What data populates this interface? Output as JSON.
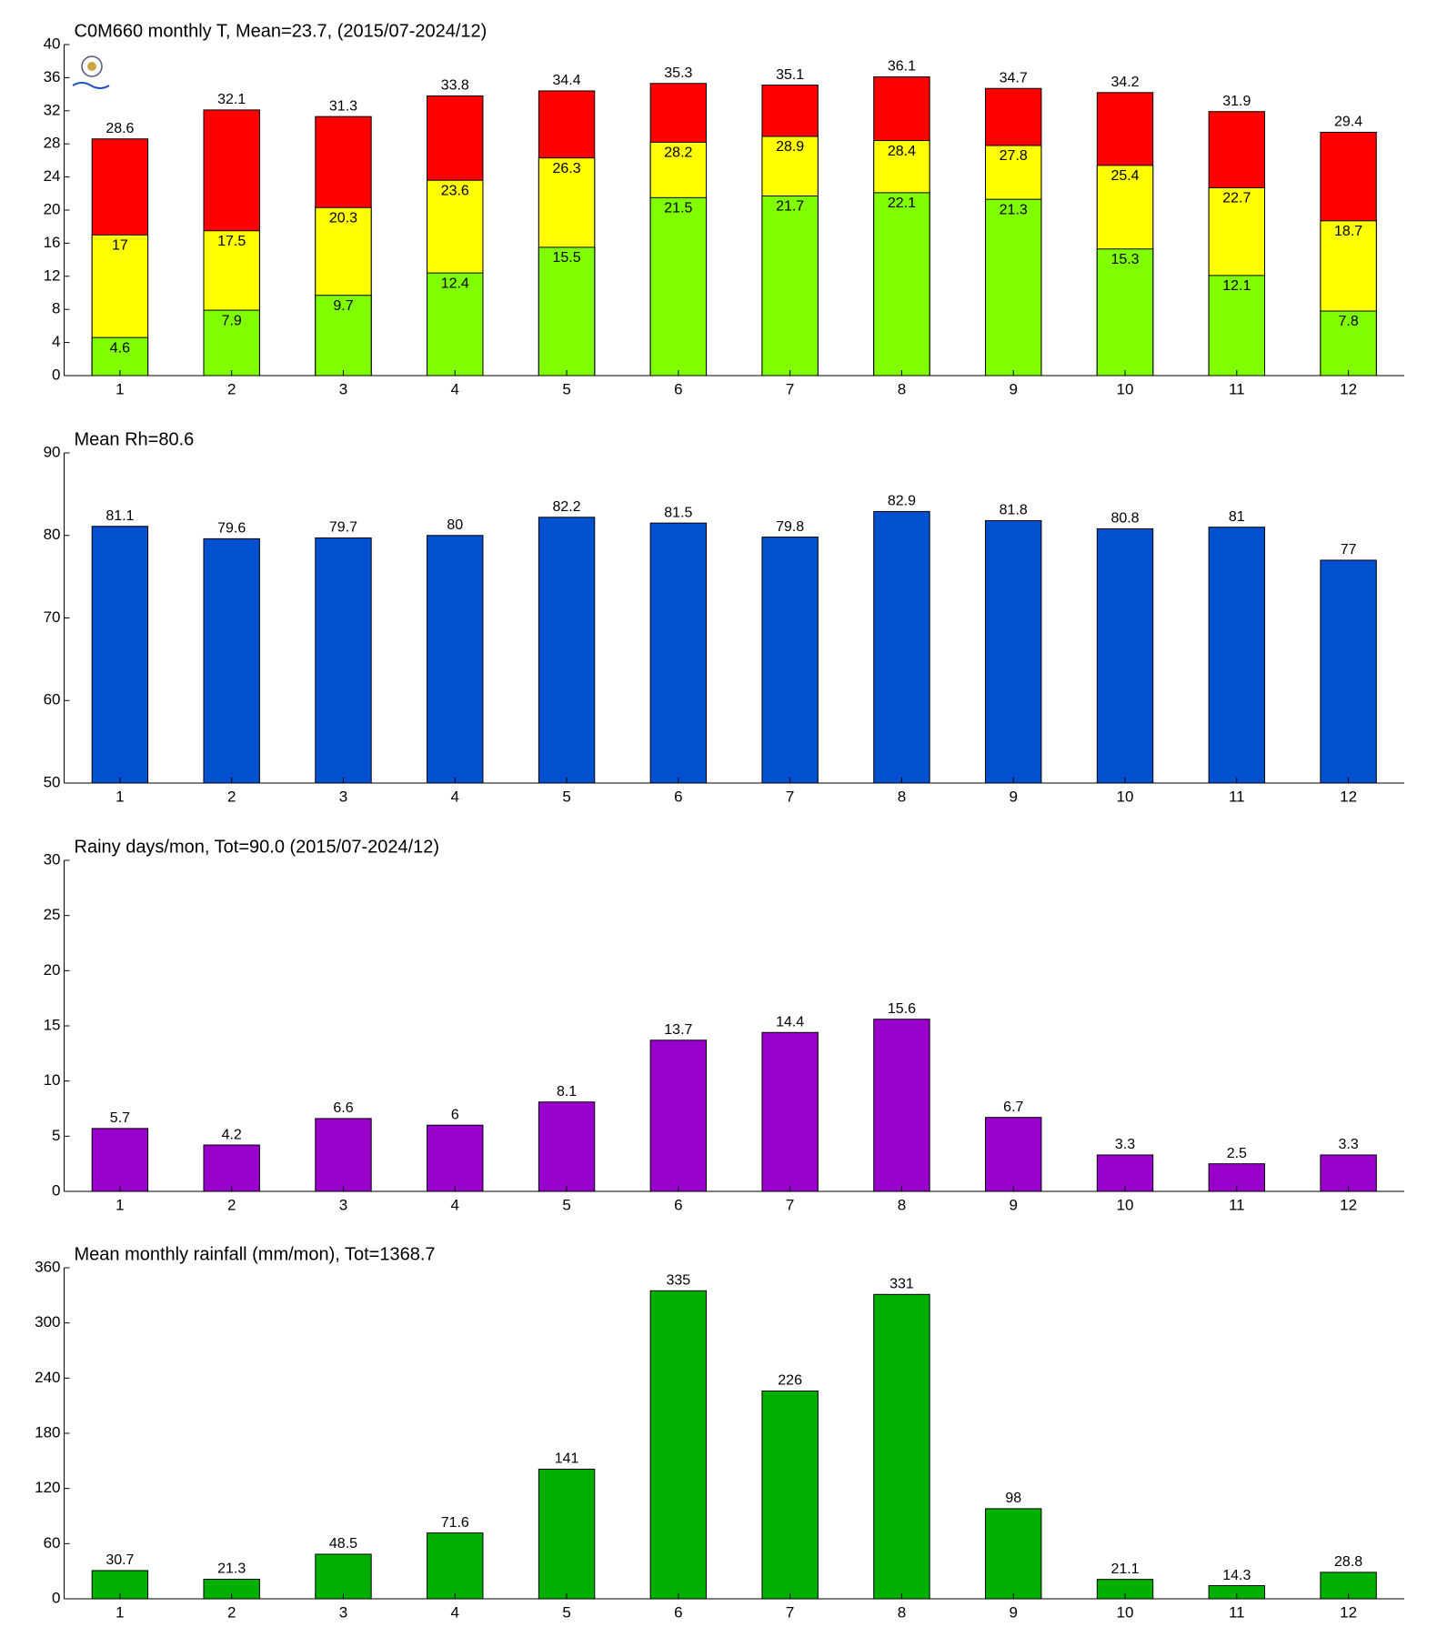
{
  "chart_data": [
    {
      "type": "bar",
      "overlap": true,
      "title": "C0M660 monthly T, Mean=23.7, (2015/07-2024/12)",
      "categories": [
        "1",
        "2",
        "3",
        "4",
        "5",
        "6",
        "7",
        "8",
        "9",
        "10",
        "11",
        "12"
      ],
      "series": [
        {
          "color": "#ff0000",
          "values": [
            28.6,
            32.1,
            31.3,
            33.8,
            34.4,
            35.3,
            35.1,
            36.1,
            34.7,
            34.2,
            31.9,
            29.4
          ]
        },
        {
          "color": "#ffff00",
          "values": [
            17,
            17.5,
            20.3,
            23.6,
            26.3,
            28.2,
            28.9,
            28.4,
            27.8,
            25.4,
            22.7,
            18.7
          ]
        },
        {
          "color": "#80ff00",
          "values": [
            4.6,
            7.9,
            9.7,
            12.4,
            15.5,
            21.5,
            21.7,
            22.1,
            21.3,
            15.3,
            12.1,
            7.8
          ]
        }
      ],
      "ylim": [
        0,
        40
      ],
      "yticks": [
        0,
        4,
        8,
        12,
        16,
        20,
        24,
        28,
        32,
        36,
        40
      ]
    },
    {
      "type": "bar",
      "title": "Mean Rh=80.6",
      "categories": [
        "1",
        "2",
        "3",
        "4",
        "5",
        "6",
        "7",
        "8",
        "9",
        "10",
        "11",
        "12"
      ],
      "series": [
        {
          "color": "#0050d0",
          "values": [
            81.1,
            79.6,
            79.7,
            80,
            82.2,
            81.5,
            79.8,
            82.9,
            81.8,
            80.8,
            81,
            77
          ]
        }
      ],
      "ylim": [
        50,
        90
      ],
      "yticks": [
        50,
        60,
        70,
        80,
        90
      ]
    },
    {
      "type": "bar",
      "title": "Rainy days/mon, Tot=90.0 (2015/07-2024/12)",
      "categories": [
        "1",
        "2",
        "3",
        "4",
        "5",
        "6",
        "7",
        "8",
        "9",
        "10",
        "11",
        "12"
      ],
      "series": [
        {
          "color": "#9900cc",
          "values": [
            5.7,
            4.2,
            6.6,
            6,
            8.1,
            13.7,
            14.4,
            15.6,
            6.7,
            3.3,
            2.5,
            3.3
          ]
        }
      ],
      "ylim": [
        0,
        30
      ],
      "yticks": [
        0,
        5,
        10,
        15,
        20,
        25,
        30
      ]
    },
    {
      "type": "bar",
      "title": "Mean monthly rainfall (mm/mon), Tot=1368.7",
      "categories": [
        "1",
        "2",
        "3",
        "4",
        "5",
        "6",
        "7",
        "8",
        "9",
        "10",
        "11",
        "12"
      ],
      "series": [
        {
          "color": "#00b000",
          "values": [
            30.7,
            21.3,
            48.5,
            71.6,
            141,
            335,
            226,
            331,
            98,
            21.1,
            14.3,
            28.8
          ]
        }
      ],
      "ylim": [
        0,
        360
      ],
      "yticks": [
        0,
        60,
        120,
        180,
        240,
        300,
        360
      ]
    }
  ]
}
